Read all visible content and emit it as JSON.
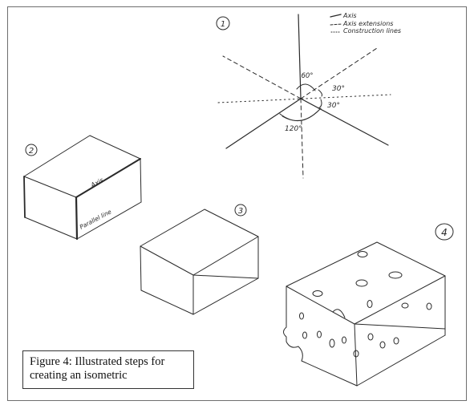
{
  "legend": {
    "axis": "Axis",
    "axis_extensions": "Axis extensions",
    "construction_lines": "Construction lines"
  },
  "steps": {
    "step1": "1",
    "step2": "2",
    "step3": "3",
    "step4": "4"
  },
  "angles": {
    "a60": "60°",
    "a30_top": "30°",
    "a30_bottom": "30°",
    "a120": "120°"
  },
  "box_labels": {
    "axis": "Axis",
    "parallel_line": "Parallel line"
  },
  "caption": {
    "line1": "Figure 4: Illustrated steps for",
    "line2": "creating an isometric"
  }
}
